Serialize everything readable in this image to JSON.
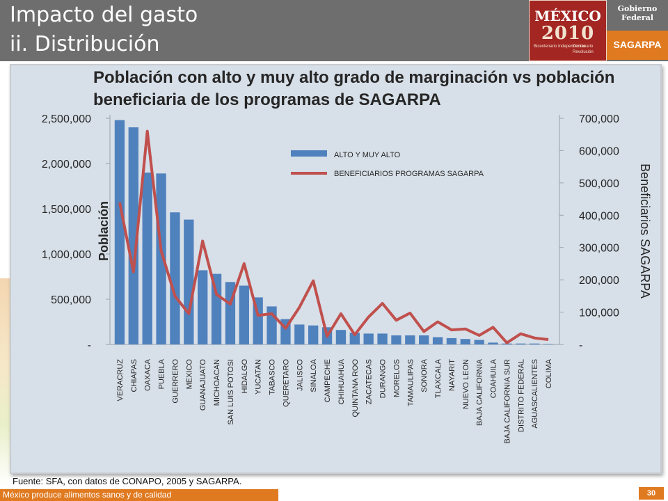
{
  "slide": {
    "title_line1": "Impacto del gasto",
    "title_line2": "ii. Distribución",
    "logo_mexico": "MÉXICO",
    "logo_year": "2010",
    "logo_bicentenario": "Bicentenario Independencia",
    "logo_centenario": "Centenario Revolución",
    "gobierno": "Gobierno Federal",
    "sagarpa": "SAGARPA",
    "source": "Fuente: SFA, con datos de CONAPO, 2005 y SAGARPA.",
    "footer": "México produce alimentos sanos y de calidad",
    "page": "30"
  },
  "chart_data": {
    "type": "bar",
    "title": "Población con alto y muy alto grado de marginación vs población beneficiaria de los programas de SAGARPA",
    "ylabel": "Población",
    "y2label": "Beneficiarios SAGARPA",
    "ylim": [
      0,
      2500000
    ],
    "y2lim": [
      0,
      700000
    ],
    "y_ticks": [
      "-",
      "500,000",
      "1,000,000",
      "1,500,000",
      "2,000,000",
      "2,500,000"
    ],
    "y2_ticks": [
      "-",
      "100,000",
      "200,000",
      "300,000",
      "400,000",
      "500,000",
      "600,000",
      "700,000"
    ],
    "legend_position": "top-right",
    "colors": {
      "bars": "#4f81bd",
      "line": "#c0504d"
    },
    "categories": [
      "VERACRUZ",
      "CHIAPAS",
      "OAXACA",
      "PUEBLA",
      "GUERRERO",
      "MEXICO",
      "GUANAJUATO",
      "MICHOACAN",
      "SAN LUIS POTOSI",
      "HIDALGO",
      "YUCATAN",
      "TABASCO",
      "QUERETARO",
      "JALISCO",
      "SINALOA",
      "CAMPECHE",
      "CHIHUAHUA",
      "QUINTANA ROO",
      "ZACATECAS",
      "DURANGO",
      "MORELOS",
      "TAMAULIPAS",
      "SONORA",
      "TLAXCALA",
      "NAYARIT",
      "NUEVO LEON",
      "BAJA CALIFORNIA",
      "COAHUILA",
      "BAJA CALIFORNIA SUR",
      "DISTRITO FEDERAL",
      "AGUASCALIENTES",
      "COLIMA"
    ],
    "series": [
      {
        "name": "ALTO Y MUY ALTO",
        "type": "bar",
        "axis": "left",
        "values": [
          2480000,
          2400000,
          1900000,
          1890000,
          1460000,
          1380000,
          820000,
          780000,
          690000,
          650000,
          520000,
          420000,
          280000,
          220000,
          210000,
          190000,
          160000,
          130000,
          120000,
          120000,
          100000,
          100000,
          100000,
          80000,
          70000,
          60000,
          50000,
          20000,
          10000,
          10000,
          10000,
          5000
        ]
      },
      {
        "name": "BENEFICIARIOS PROGRAMAS SAGARPA",
        "type": "line",
        "axis": "right",
        "values": [
          440000,
          225000,
          660000,
          290000,
          150000,
          95000,
          320000,
          155000,
          125000,
          250000,
          90000,
          95000,
          50000,
          115000,
          197000,
          25000,
          95000,
          30000,
          85000,
          127000,
          75000,
          97000,
          40000,
          70000,
          45000,
          48000,
          28000,
          53000,
          5000,
          33000,
          20000,
          15000
        ]
      }
    ]
  }
}
